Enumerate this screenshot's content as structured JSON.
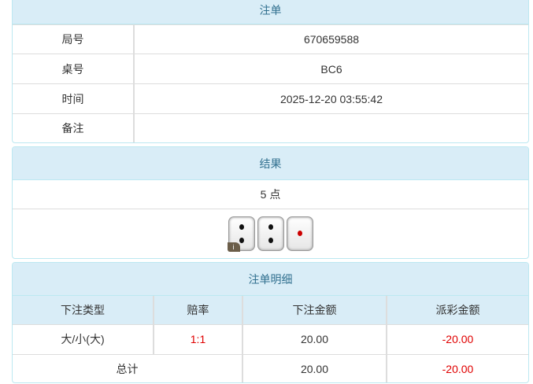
{
  "order": {
    "title": "注单",
    "rows": [
      {
        "label": "局号",
        "value": "670659588"
      },
      {
        "label": "桌号",
        "value": "BC6"
      },
      {
        "label": "时间",
        "value": "2025-12-20 03:55:42"
      },
      {
        "label": "备注",
        "value": ""
      }
    ]
  },
  "result": {
    "title": "结果",
    "points": "5 点",
    "dice": [
      2,
      2,
      1
    ],
    "info_badge": "i"
  },
  "detail": {
    "title": "注单明细",
    "headers": [
      "下注类型",
      "赔率",
      "下注金额",
      "派彩金额"
    ],
    "row": {
      "type": "大/小(大)",
      "odds": "1:1",
      "bet": "20.00",
      "payout": "-20.00"
    },
    "total": {
      "label": "总计",
      "bet": "20.00",
      "payout": "-20.00"
    }
  },
  "colors": {
    "header_bg": "#d9edf7",
    "header_text": "#31708f",
    "negative": "#e00000"
  }
}
